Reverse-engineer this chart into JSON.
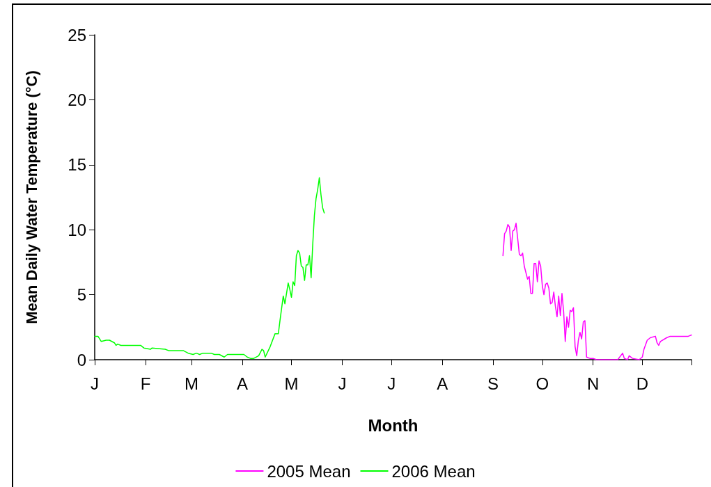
{
  "chart_data": {
    "type": "line",
    "xlabel": "Month",
    "ylabel": "Mean Daily Water Temperature (°C)",
    "categories": [
      "J",
      null,
      null,
      null,
      null,
      null,
      null,
      null,
      null,
      null,
      null,
      null,
      null,
      null,
      null,
      null,
      null,
      null,
      null,
      null,
      null,
      null,
      null,
      null,
      null,
      null,
      null,
      null,
      null,
      null,
      null,
      "F",
      null,
      null,
      null,
      null,
      null,
      null,
      null,
      null,
      null,
      null,
      null,
      null,
      null,
      null,
      null,
      null,
      null,
      null,
      null,
      null,
      null,
      null,
      null,
      null,
      null,
      null,
      null,
      "M",
      null,
      null,
      null,
      null,
      null,
      null,
      null,
      null,
      null,
      null,
      null,
      null,
      null,
      null,
      null,
      null,
      null,
      null,
      null,
      null,
      null,
      null,
      null,
      null,
      null,
      null,
      null,
      null,
      null,
      null,
      "A",
      null,
      null,
      null,
      null,
      null,
      null,
      null,
      null,
      null,
      null,
      null,
      null,
      null,
      null,
      null,
      null,
      null,
      null,
      null,
      null,
      null,
      null,
      null,
      null,
      null,
      null,
      null,
      null,
      null,
      "M",
      null,
      null,
      null,
      null,
      null,
      null,
      null,
      null,
      null,
      null,
      null,
      null,
      null,
      null,
      null,
      null,
      null,
      null,
      null,
      null,
      null,
      null,
      null,
      null,
      null,
      null,
      null,
      null,
      null,
      null,
      "J",
      null,
      null,
      null,
      null,
      null,
      null,
      null,
      null,
      null,
      null,
      null,
      null,
      null,
      null,
      null,
      null,
      null,
      null,
      null,
      null,
      null,
      null,
      null,
      null,
      null,
      null,
      null,
      null,
      null,
      "J",
      null,
      null,
      null,
      null,
      null,
      null,
      null,
      null,
      null,
      null,
      null,
      null,
      null,
      null,
      null,
      null,
      null,
      null,
      null,
      null,
      null,
      null,
      null,
      null,
      null,
      null,
      null,
      null,
      null,
      null,
      "A",
      null,
      null,
      null,
      null,
      null,
      null,
      null,
      null,
      null,
      null,
      null,
      null,
      null,
      null,
      null,
      null,
      null,
      null,
      null,
      null,
      null,
      null,
      null,
      null,
      null,
      null,
      null,
      null,
      null,
      null,
      "S",
      null,
      null,
      null,
      null,
      null,
      null,
      null,
      null,
      null,
      null,
      null,
      null,
      null,
      null,
      null,
      null,
      null,
      null,
      null,
      null,
      null,
      null,
      null,
      null,
      null,
      null,
      null,
      null,
      null,
      "O",
      null,
      null,
      null,
      null,
      null,
      null,
      null,
      null,
      null,
      null,
      null,
      null,
      null,
      null,
      null,
      null,
      null,
      null,
      null,
      null,
      null,
      null,
      null,
      null,
      null,
      null,
      null,
      null,
      null,
      null,
      "N",
      null,
      null,
      null,
      null,
      null,
      null,
      null,
      null,
      null,
      null,
      null,
      null,
      null,
      null,
      null,
      null,
      null,
      null,
      null,
      null,
      null,
      null,
      null,
      null,
      null,
      null,
      null,
      null,
      null,
      "D",
      null,
      null,
      null,
      null,
      null,
      null,
      null,
      null,
      null,
      null,
      null,
      null,
      null,
      null,
      null,
      null,
      null,
      null,
      null,
      null,
      null,
      null,
      null,
      null,
      null,
      null,
      null,
      null,
      null,
      null
    ],
    "ylim": [
      0,
      25
    ],
    "yticks": [
      0,
      5,
      10,
      15,
      20,
      25
    ],
    "grid": false,
    "legend": "bottom",
    "marker": "none",
    "line_style": "solid",
    "series": [
      {
        "name": "2005 Mean",
        "color": "#ff00ff",
        "values": [
          null,
          null,
          null,
          null,
          null,
          null,
          null,
          null,
          null,
          null,
          null,
          null,
          null,
          null,
          null,
          null,
          null,
          null,
          null,
          null,
          null,
          null,
          null,
          null,
          null,
          null,
          null,
          null,
          null,
          null,
          null,
          null,
          null,
          null,
          null,
          null,
          null,
          null,
          null,
          null,
          null,
          null,
          null,
          null,
          null,
          null,
          null,
          null,
          null,
          null,
          null,
          null,
          null,
          null,
          null,
          null,
          null,
          null,
          null,
          null,
          null,
          null,
          null,
          null,
          null,
          null,
          null,
          null,
          null,
          null,
          null,
          null,
          null,
          null,
          null,
          null,
          null,
          null,
          null,
          null,
          null,
          null,
          null,
          null,
          null,
          null,
          null,
          null,
          null,
          null,
          null,
          null,
          null,
          null,
          null,
          null,
          null,
          null,
          null,
          null,
          null,
          null,
          null,
          null,
          null,
          null,
          null,
          null,
          null,
          null,
          null,
          null,
          null,
          null,
          null,
          null,
          null,
          null,
          null,
          null,
          null,
          null,
          null,
          null,
          null,
          null,
          null,
          null,
          null,
          null,
          null,
          null,
          null,
          null,
          null,
          null,
          null,
          null,
          null,
          null,
          null,
          null,
          null,
          null,
          null,
          null,
          null,
          null,
          null,
          null,
          null,
          null,
          null,
          null,
          null,
          null,
          null,
          null,
          null,
          null,
          null,
          null,
          null,
          null,
          null,
          null,
          null,
          null,
          null,
          null,
          null,
          null,
          null,
          null,
          null,
          null,
          null,
          null,
          null,
          null,
          null,
          null,
          null,
          null,
          null,
          null,
          null,
          null,
          null,
          null,
          null,
          null,
          null,
          null,
          null,
          null,
          null,
          null,
          null,
          null,
          null,
          null,
          null,
          null,
          null,
          null,
          null,
          null,
          null,
          null,
          null,
          null,
          null,
          null,
          null,
          null,
          null,
          null,
          null,
          null,
          null,
          null,
          null,
          null,
          null,
          null,
          null,
          null,
          null,
          null,
          null,
          null,
          null,
          null,
          null,
          null,
          null,
          null,
          null,
          null,
          null,
          null,
          null,
          null,
          null,
          null,
          null,
          null,
          null,
          8.0,
          9.7,
          9.9,
          10.4,
          10.2,
          8.4,
          9.9,
          10.0,
          10.5,
          9.3,
          8.1,
          8.0,
          8.2,
          7.2,
          null,
          6.2,
          6.4,
          5.1,
          5.1,
          7.4,
          7.4,
          6.0,
          7.6,
          7.2,
          5.7,
          5.0,
          5.8,
          5.9,
          5.5,
          4.3,
          4.4,
          5.2,
          4.1,
          3.3,
          4.9,
          3.4,
          5.1,
          3.7,
          1.4,
          3.3,
          2.5,
          3.8,
          3.7,
          4.0,
          1.0,
          0.3,
          1.5,
          2.1,
          1.6,
          2.9,
          3.0,
          0.2,
          null,
          0.1,
          null,
          0.1,
          null,
          0,
          null,
          null,
          null,
          null,
          null,
          null,
          null,
          null,
          null,
          null,
          null,
          null,
          0,
          null,
          null,
          0.5,
          0.1,
          null,
          0,
          0.3,
          null,
          0.1,
          null,
          null,
          null,
          0,
          null,
          0.2,
          0.8,
          null,
          1.5,
          null,
          1.7,
          null,
          null,
          1.8,
          1.3,
          1.1,
          1.4,
          null,
          null,
          null,
          1.7,
          null,
          1.8,
          null,
          null,
          null,
          null,
          null,
          null,
          null,
          null,
          null,
          null,
          1.8,
          null,
          1.9
        ]
      },
      {
        "name": "2006 Mean",
        "color": "#00ff00",
        "values": [
          1.8,
          null,
          1.8,
          null,
          1.4,
          null,
          null,
          1.5,
          null,
          1.5,
          null,
          null,
          1.3,
          1.1,
          1.2,
          null,
          1.1,
          null,
          1.1,
          null,
          null,
          null,
          null,
          null,
          null,
          null,
          null,
          null,
          1.1,
          null,
          0.9,
          null,
          null,
          null,
          0.8,
          0.9,
          null,
          null,
          null,
          null,
          null,
          null,
          null,
          0.8,
          null,
          0.7,
          null,
          null,
          null,
          0.7,
          null,
          null,
          null,
          null,
          0.7,
          null,
          null,
          0.5,
          null,
          null,
          0.4,
          null,
          0.5,
          null,
          0.4,
          null,
          0.5,
          null,
          null,
          null,
          null,
          0.5,
          null,
          0.4,
          null,
          null,
          0.4,
          null,
          null,
          0.2,
          null,
          0.4,
          null,
          null,
          null,
          null,
          null,
          null,
          null,
          null,
          null,
          0.4,
          null,
          0.2,
          null,
          0.1,
          null,
          0.1,
          null,
          null,
          0.3,
          null,
          0.8,
          0.7,
          0.2,
          null,
          null,
          1.0,
          null,
          null,
          2.0,
          null,
          2.0,
          3.0,
          null,
          4.9,
          4.3,
          null,
          5.9,
          5.4,
          4.8,
          6.0,
          5.7,
          8.0,
          8.4,
          8.2,
          7.2,
          7.1,
          6.1,
          7.3,
          7.3,
          8.0,
          6.3,
          8.9,
          11.1,
          12.4,
          13.1,
          14.0,
          12.7,
          11.7,
          11.3,
          null,
          null,
          null,
          null,
          null,
          null,
          null,
          null,
          null,
          null,
          null,
          null,
          null,
          null,
          null,
          null,
          null,
          null,
          null,
          null,
          null,
          null,
          null,
          null,
          null,
          null,
          null,
          null,
          null,
          null,
          null,
          null,
          null,
          null,
          null,
          null,
          null,
          null,
          null,
          null,
          null,
          null,
          null,
          null,
          null,
          null,
          null,
          null,
          null,
          null,
          null,
          null,
          null,
          null,
          null,
          null,
          null,
          null,
          null,
          null,
          null,
          null,
          null,
          null,
          null,
          null,
          null,
          null,
          null,
          null,
          null,
          null,
          null,
          null,
          null,
          null,
          null,
          null,
          null,
          null,
          null,
          null,
          null,
          null,
          null,
          null,
          null,
          null,
          null,
          null,
          null,
          null,
          null,
          null,
          null,
          null,
          null,
          null,
          null,
          null,
          null,
          null,
          null,
          null,
          null,
          null,
          null,
          null,
          null,
          null,
          null,
          null,
          null,
          null,
          null,
          null,
          null,
          null,
          null,
          null,
          null,
          null,
          null,
          null,
          null,
          null,
          null,
          null,
          null,
          null,
          null,
          null,
          null,
          null,
          null,
          null,
          null,
          null,
          null,
          null,
          null,
          null,
          null,
          null,
          null,
          null,
          null,
          null,
          null,
          null,
          null,
          null,
          null,
          null,
          null,
          null,
          null,
          null,
          null,
          null,
          null,
          null,
          null,
          null,
          null,
          null,
          null,
          null,
          null,
          null,
          null,
          null,
          null,
          null,
          null,
          null,
          null,
          null,
          null,
          null,
          null,
          null,
          null,
          null,
          null,
          null,
          null,
          null,
          null,
          null,
          null,
          null,
          null,
          null,
          null,
          null,
          null,
          null,
          null,
          null,
          null,
          null,
          null,
          null,
          null,
          null,
          null,
          null,
          null,
          null,
          null,
          null,
          null,
          null,
          null,
          null,
          null,
          null,
          null,
          null,
          null,
          null,
          null,
          null
        ]
      }
    ]
  }
}
